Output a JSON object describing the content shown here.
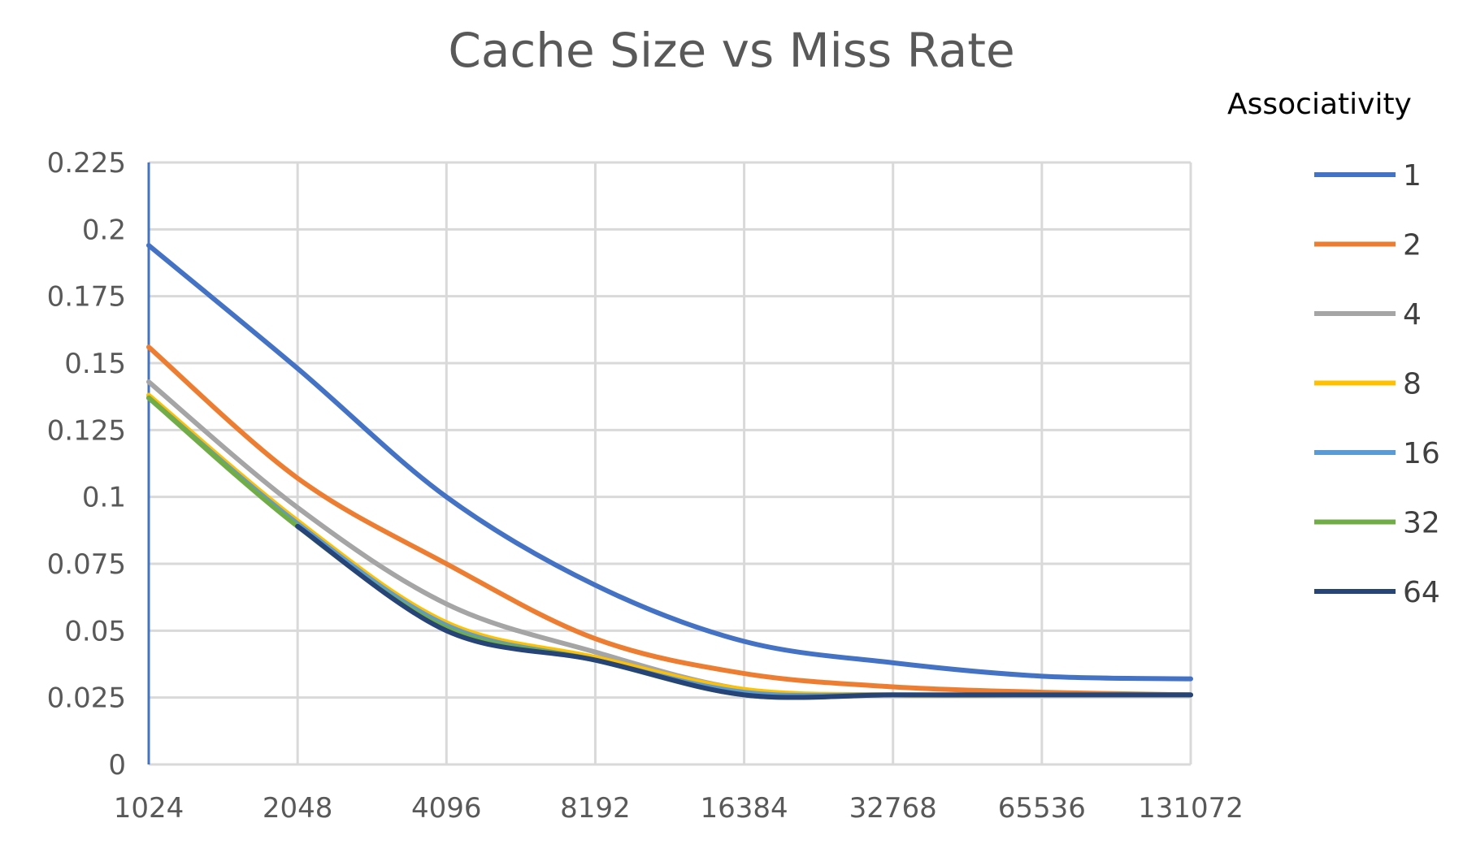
{
  "chart_data": {
    "type": "line",
    "title": "Cache Size vs Miss Rate",
    "xlabel": "",
    "ylabel": "",
    "x": [
      "1024",
      "2048",
      "4096",
      "8192",
      "16384",
      "32768",
      "65536",
      "131072"
    ],
    "ylim": [
      0,
      0.225
    ],
    "y_ticks": [
      "0",
      "0.025",
      "0.05",
      "0.075",
      "0.1",
      "0.125",
      "0.15",
      "0.175",
      "0.2",
      "0.225"
    ],
    "grid": true,
    "legend_title": "Associativity",
    "legend_position": "right",
    "series": [
      {
        "name": "1",
        "color": "#4472C4",
        "values": [
          0.194,
          0.148,
          0.1,
          0.067,
          0.046,
          0.038,
          0.033,
          0.032
        ]
      },
      {
        "name": "2",
        "color": "#ED7D31",
        "values": [
          0.156,
          0.107,
          0.075,
          0.047,
          0.034,
          0.029,
          0.027,
          0.026
        ]
      },
      {
        "name": "4",
        "color": "#A5A5A5",
        "values": [
          0.143,
          0.096,
          0.06,
          0.042,
          0.028,
          0.026,
          0.026,
          0.026
        ]
      },
      {
        "name": "8",
        "color": "#FFC000",
        "values": [
          0.138,
          0.091,
          0.053,
          0.04,
          0.028,
          0.026,
          0.026,
          0.026
        ]
      },
      {
        "name": "16",
        "color": "#5B9BD5",
        "values": [
          0.137,
          0.09,
          0.052,
          0.039,
          0.027,
          0.026,
          0.026,
          0.026
        ]
      },
      {
        "name": "32",
        "color": "#70AD47",
        "values": [
          0.137,
          0.089,
          0.051,
          0.039,
          0.026,
          0.026,
          0.026,
          0.026
        ]
      },
      {
        "name": "64",
        "color": "#264478",
        "values": [
          null,
          0.089,
          0.05,
          0.039,
          0.026,
          0.026,
          0.026,
          0.026
        ]
      }
    ]
  }
}
